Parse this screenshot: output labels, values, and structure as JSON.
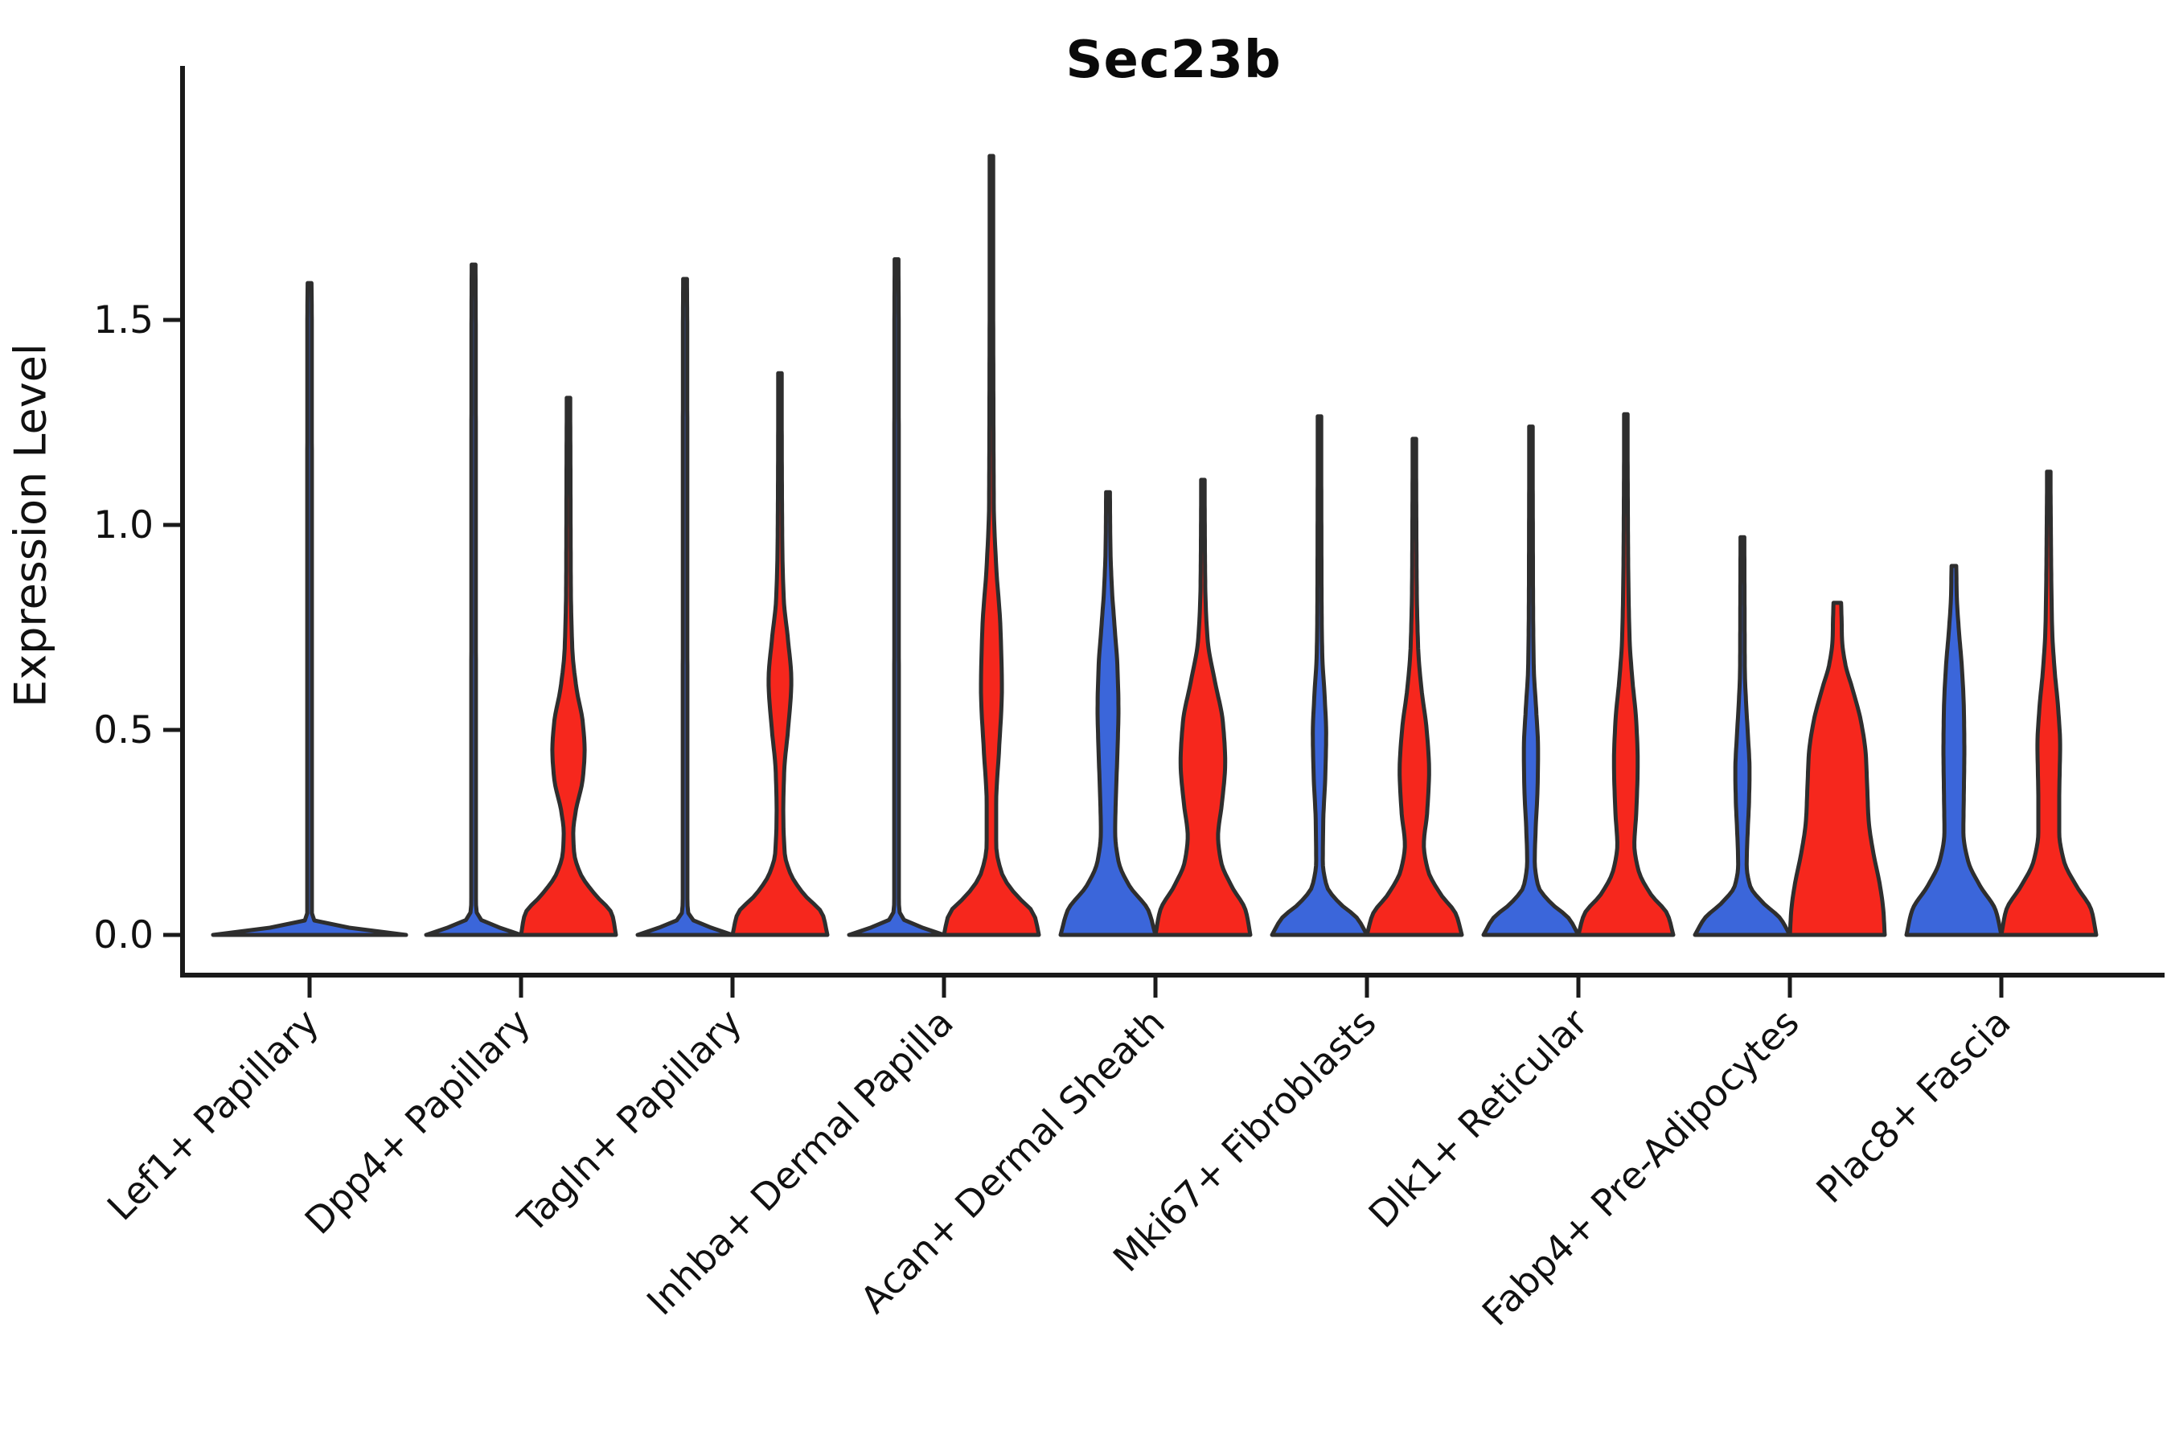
{
  "title": "Sec23b",
  "y_axis": {
    "label": "Expression Level",
    "ticks": [
      {
        "value": 0.0,
        "label": "0.0"
      },
      {
        "value": 0.5,
        "label": "0.5"
      },
      {
        "value": 1.0,
        "label": "1.0"
      },
      {
        "value": 1.5,
        "label": "1.5"
      }
    ]
  },
  "x_axis": {
    "categories": [
      "Lef1+ Papillary",
      "Dpp4+ Papillary",
      "Tagln+ Papillary",
      "Inhba+ Dermal Papilla",
      "Acan+ Dermal Sheath",
      "Mki67+ Fibroblasts",
      "Dlk1+ Reticular",
      "Fabp4+ Pre-Adipocytes",
      "Plac8+ Fascia"
    ]
  },
  "colors": {
    "blue": "#3b66da",
    "red": "#f6271d",
    "outline": "#2e2e2e",
    "axis": "#1a1a1a",
    "text": "#111111"
  },
  "chart_data": {
    "type": "violin",
    "title": "Sec23b",
    "ylabel": "Expression Level",
    "ylim": [
      0,
      2.0
    ],
    "grid": false,
    "legend": "none",
    "groups": [
      {
        "category": "Lef1+ Papillary",
        "violins": [
          {
            "color": "blue",
            "side": "center",
            "span": "full",
            "max": 1.59,
            "profile": [
              [
                0,
                1.0
              ],
              [
                0.015,
                0.5
              ],
              [
                0.03,
                0.07
              ],
              [
                0.05,
                0.024
              ],
              [
                0.8,
                0.024
              ],
              [
                1.5,
                0.023
              ],
              [
                1.59,
                0.02
              ]
            ]
          }
        ]
      },
      {
        "category": "Dpp4+ Papillary",
        "violins": [
          {
            "color": "blue",
            "side": "left",
            "span": "half",
            "max": 1.635,
            "profile": [
              [
                0,
                1.0
              ],
              [
                0.02,
                0.5
              ],
              [
                0.045,
                0.08
              ],
              [
                0.08,
                0.05
              ],
              [
                0.8,
                0.048
              ],
              [
                1.5,
                0.045
              ],
              [
                1.635,
                0.04
              ]
            ]
          },
          {
            "color": "red",
            "side": "right",
            "span": "half",
            "max": 1.31,
            "profile": [
              [
                0,
                1.0
              ],
              [
                0.05,
                0.92
              ],
              [
                0.1,
                0.55
              ],
              [
                0.15,
                0.25
              ],
              [
                0.2,
                0.12
              ],
              [
                0.25,
                0.1
              ],
              [
                0.3,
                0.15
              ],
              [
                0.38,
                0.3
              ],
              [
                0.45,
                0.34
              ],
              [
                0.52,
                0.3
              ],
              [
                0.6,
                0.17
              ],
              [
                0.7,
                0.08
              ],
              [
                0.85,
                0.05
              ],
              [
                1.0,
                0.045
              ],
              [
                1.2,
                0.04
              ],
              [
                1.31,
                0.035
              ]
            ]
          }
        ]
      },
      {
        "category": "Tagln+ Papillary",
        "violins": [
          {
            "color": "blue",
            "side": "left",
            "span": "half",
            "max": 1.6,
            "profile": [
              [
                0,
                1.0
              ],
              [
                0.02,
                0.5
              ],
              [
                0.045,
                0.08
              ],
              [
                0.08,
                0.05
              ],
              [
                0.8,
                0.048
              ],
              [
                1.5,
                0.045
              ],
              [
                1.6,
                0.04
              ]
            ]
          },
          {
            "color": "red",
            "side": "right",
            "span": "half",
            "max": 1.37,
            "profile": [
              [
                0,
                1.0
              ],
              [
                0.05,
                0.9
              ],
              [
                0.1,
                0.5
              ],
              [
                0.15,
                0.22
              ],
              [
                0.2,
                0.1
              ],
              [
                0.3,
                0.07
              ],
              [
                0.4,
                0.09
              ],
              [
                0.5,
                0.17
              ],
              [
                0.62,
                0.24
              ],
              [
                0.72,
                0.17
              ],
              [
                0.82,
                0.08
              ],
              [
                0.95,
                0.05
              ],
              [
                1.15,
                0.04
              ],
              [
                1.37,
                0.035
              ]
            ]
          }
        ]
      },
      {
        "category": "Inhba+ Dermal Papilla",
        "violins": [
          {
            "color": "blue",
            "side": "left",
            "span": "half",
            "max": 1.648,
            "profile": [
              [
                0,
                1.0
              ],
              [
                0.02,
                0.5
              ],
              [
                0.045,
                0.08
              ],
              [
                0.08,
                0.05
              ],
              [
                0.8,
                0.048
              ],
              [
                1.5,
                0.045
              ],
              [
                1.648,
                0.04
              ]
            ]
          },
          {
            "color": "red",
            "side": "right",
            "span": "half",
            "max": 1.9,
            "profile": [
              [
                0,
                1.0
              ],
              [
                0.05,
                0.9
              ],
              [
                0.1,
                0.5
              ],
              [
                0.15,
                0.22
              ],
              [
                0.22,
                0.1
              ],
              [
                0.32,
                0.1
              ],
              [
                0.45,
                0.16
              ],
              [
                0.6,
                0.22
              ],
              [
                0.75,
                0.19
              ],
              [
                0.9,
                0.1
              ],
              [
                1.05,
                0.05
              ],
              [
                1.4,
                0.04
              ],
              [
                1.9,
                0.03
              ]
            ]
          }
        ]
      },
      {
        "category": "Acan+ Dermal Sheath",
        "violins": [
          {
            "color": "blue",
            "side": "left",
            "span": "half",
            "max": 1.08,
            "profile": [
              [
                0,
                1.0
              ],
              [
                0.06,
                0.85
              ],
              [
                0.12,
                0.45
              ],
              [
                0.18,
                0.22
              ],
              [
                0.25,
                0.15
              ],
              [
                0.35,
                0.17
              ],
              [
                0.45,
                0.2
              ],
              [
                0.55,
                0.22
              ],
              [
                0.65,
                0.2
              ],
              [
                0.75,
                0.14
              ],
              [
                0.85,
                0.08
              ],
              [
                0.95,
                0.05
              ],
              [
                1.08,
                0.04
              ]
            ]
          },
          {
            "color": "red",
            "side": "right",
            "span": "half",
            "max": 1.11,
            "profile": [
              [
                0,
                1.0
              ],
              [
                0.06,
                0.9
              ],
              [
                0.12,
                0.6
              ],
              [
                0.18,
                0.38
              ],
              [
                0.24,
                0.32
              ],
              [
                0.32,
                0.4
              ],
              [
                0.42,
                0.47
              ],
              [
                0.52,
                0.42
              ],
              [
                0.62,
                0.25
              ],
              [
                0.72,
                0.1
              ],
              [
                0.85,
                0.05
              ],
              [
                1.0,
                0.04
              ],
              [
                1.11,
                0.035
              ]
            ]
          }
        ]
      },
      {
        "category": "Mki67+ Fibroblasts",
        "violins": [
          {
            "color": "blue",
            "side": "left",
            "span": "half",
            "max": 1.265,
            "profile": [
              [
                0,
                1.0
              ],
              [
                0.04,
                0.8
              ],
              [
                0.08,
                0.4
              ],
              [
                0.12,
                0.15
              ],
              [
                0.18,
                0.07
              ],
              [
                0.28,
                0.08
              ],
              [
                0.38,
                0.12
              ],
              [
                0.49,
                0.14
              ],
              [
                0.58,
                0.11
              ],
              [
                0.68,
                0.06
              ],
              [
                0.8,
                0.045
              ],
              [
                1.0,
                0.04
              ],
              [
                1.265,
                0.035
              ]
            ]
          },
          {
            "color": "red",
            "side": "right",
            "span": "half",
            "max": 1.21,
            "profile": [
              [
                0,
                1.0
              ],
              [
                0.05,
                0.88
              ],
              [
                0.1,
                0.55
              ],
              [
                0.16,
                0.28
              ],
              [
                0.22,
                0.2
              ],
              [
                0.3,
                0.27
              ],
              [
                0.4,
                0.31
              ],
              [
                0.5,
                0.26
              ],
              [
                0.6,
                0.15
              ],
              [
                0.7,
                0.08
              ],
              [
                0.85,
                0.05
              ],
              [
                1.05,
                0.04
              ],
              [
                1.21,
                0.035
              ]
            ]
          }
        ]
      },
      {
        "category": "Dlk1+ Reticular",
        "violins": [
          {
            "color": "blue",
            "side": "left",
            "span": "half",
            "max": 1.24,
            "profile": [
              [
                0,
                1.0
              ],
              [
                0.04,
                0.8
              ],
              [
                0.08,
                0.4
              ],
              [
                0.12,
                0.15
              ],
              [
                0.18,
                0.08
              ],
              [
                0.26,
                0.1
              ],
              [
                0.36,
                0.14
              ],
              [
                0.45,
                0.15
              ],
              [
                0.55,
                0.11
              ],
              [
                0.65,
                0.06
              ],
              [
                0.8,
                0.045
              ],
              [
                1.0,
                0.04
              ],
              [
                1.24,
                0.035
              ]
            ]
          },
          {
            "color": "red",
            "side": "right",
            "span": "half",
            "max": 1.27,
            "profile": [
              [
                0,
                1.0
              ],
              [
                0.05,
                0.88
              ],
              [
                0.1,
                0.52
              ],
              [
                0.16,
                0.26
              ],
              [
                0.22,
                0.18
              ],
              [
                0.3,
                0.22
              ],
              [
                0.42,
                0.25
              ],
              [
                0.52,
                0.22
              ],
              [
                0.62,
                0.14
              ],
              [
                0.72,
                0.08
              ],
              [
                0.9,
                0.05
              ],
              [
                1.1,
                0.04
              ],
              [
                1.27,
                0.035
              ]
            ]
          }
        ]
      },
      {
        "category": "Fabp4+ Pre-Adipocytes",
        "violins": [
          {
            "color": "blue",
            "side": "left",
            "span": "half",
            "max": 0.97,
            "profile": [
              [
                0,
                1.0
              ],
              [
                0.04,
                0.8
              ],
              [
                0.08,
                0.42
              ],
              [
                0.12,
                0.16
              ],
              [
                0.17,
                0.09
              ],
              [
                0.25,
                0.11
              ],
              [
                0.33,
                0.14
              ],
              [
                0.4,
                0.15
              ],
              [
                0.48,
                0.12
              ],
              [
                0.56,
                0.08
              ],
              [
                0.65,
                0.05
              ],
              [
                0.8,
                0.045
              ],
              [
                0.97,
                0.04
              ]
            ]
          },
          {
            "color": "red",
            "side": "right",
            "span": "half",
            "max": 0.81,
            "profile": [
              [
                0,
                1.0
              ],
              [
                0.06,
                0.97
              ],
              [
                0.12,
                0.9
              ],
              [
                0.2,
                0.76
              ],
              [
                0.28,
                0.66
              ],
              [
                0.36,
                0.63
              ],
              [
                0.44,
                0.6
              ],
              [
                0.52,
                0.5
              ],
              [
                0.6,
                0.32
              ],
              [
                0.66,
                0.17
              ],
              [
                0.72,
                0.1
              ],
              [
                0.77,
                0.09
              ],
              [
                0.81,
                0.08
              ]
            ]
          }
        ]
      },
      {
        "category": "Plac8+ Fascia",
        "violins": [
          {
            "color": "blue",
            "side": "left",
            "span": "half",
            "max": 0.9,
            "profile": [
              [
                0,
                1.0
              ],
              [
                0.06,
                0.88
              ],
              [
                0.12,
                0.55
              ],
              [
                0.18,
                0.3
              ],
              [
                0.25,
                0.2
              ],
              [
                0.35,
                0.21
              ],
              [
                0.45,
                0.22
              ],
              [
                0.55,
                0.21
              ],
              [
                0.65,
                0.17
              ],
              [
                0.75,
                0.1
              ],
              [
                0.83,
                0.06
              ],
              [
                0.9,
                0.05
              ]
            ]
          },
          {
            "color": "red",
            "side": "right",
            "span": "half",
            "max": 1.13,
            "profile": [
              [
                0,
                1.0
              ],
              [
                0.06,
                0.9
              ],
              [
                0.12,
                0.58
              ],
              [
                0.18,
                0.32
              ],
              [
                0.25,
                0.22
              ],
              [
                0.33,
                0.22
              ],
              [
                0.4,
                0.23
              ],
              [
                0.46,
                0.24
              ],
              [
                0.55,
                0.2
              ],
              [
                0.65,
                0.12
              ],
              [
                0.75,
                0.07
              ],
              [
                0.9,
                0.05
              ],
              [
                1.05,
                0.04
              ],
              [
                1.13,
                0.035
              ]
            ]
          }
        ]
      }
    ]
  }
}
